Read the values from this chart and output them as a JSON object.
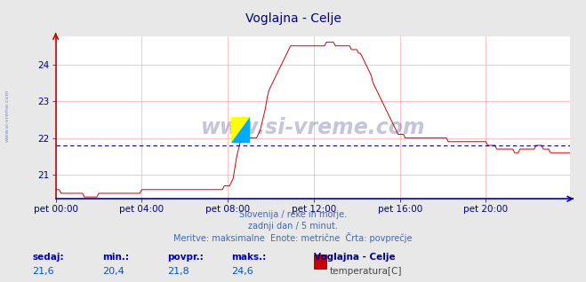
{
  "title": "Voglajna - Celje",
  "title_color": "#000080",
  "bg_color": "#e8e8e8",
  "plot_bg_color": "#ffffff",
  "grid_color": "#ffaaaa",
  "line_color": "#cc0000",
  "avg_line_color": "#000080",
  "avg_line_value": 21.8,
  "ylim_min": 20.35,
  "ylim_max": 24.75,
  "yticks": [
    21,
    22,
    23,
    24
  ],
  "xtick_labels": [
    "pet 00:00",
    "pet 04:00",
    "pet 08:00",
    "pet 12:00",
    "pet 16:00",
    "pet 20:00"
  ],
  "footer_line1": "Slovenija / reke in morje.",
  "footer_line2": "zadnji dan / 5 minut.",
  "footer_line3": "Meritve: maksimalne  Enote: metrične  Črta: povprečje",
  "footer_color": "#4466aa",
  "stat_labels": [
    "sedaj:",
    "min.:",
    "povpr.:",
    "maks.:"
  ],
  "stat_values": [
    "21,6",
    "20,4",
    "21,8",
    "24,6"
  ],
  "stat_label_color": "#0000bb",
  "stat_value_color": "#0055cc",
  "legend_station": "Voglajna - Celje",
  "legend_param": "temperatura[C]",
  "legend_color": "#cc0000",
  "watermark_text": "www.si-vreme.com",
  "watermark_color": "#1a1a6e",
  "left_label": "www.si-vreme.com",
  "temp_data": [
    20.6,
    20.6,
    20.6,
    20.5,
    20.5,
    20.5,
    20.5,
    20.5,
    20.5,
    20.5,
    20.5,
    20.5,
    20.5,
    20.5,
    20.5,
    20.5,
    20.4,
    20.4,
    20.4,
    20.4,
    20.4,
    20.4,
    20.4,
    20.4,
    20.5,
    20.5,
    20.5,
    20.5,
    20.5,
    20.5,
    20.5,
    20.5,
    20.5,
    20.5,
    20.5,
    20.5,
    20.5,
    20.5,
    20.5,
    20.5,
    20.5,
    20.5,
    20.5,
    20.5,
    20.5,
    20.5,
    20.5,
    20.5,
    20.6,
    20.6,
    20.6,
    20.6,
    20.6,
    20.6,
    20.6,
    20.6,
    20.6,
    20.6,
    20.6,
    20.6,
    20.6,
    20.6,
    20.6,
    20.6,
    20.6,
    20.6,
    20.6,
    20.6,
    20.6,
    20.6,
    20.6,
    20.6,
    20.6,
    20.6,
    20.6,
    20.6,
    20.6,
    20.6,
    20.6,
    20.6,
    20.6,
    20.6,
    20.6,
    20.6,
    20.6,
    20.6,
    20.6,
    20.6,
    20.6,
    20.6,
    20.6,
    20.6,
    20.6,
    20.6,
    20.7,
    20.7,
    20.7,
    20.7,
    20.8,
    20.9,
    21.2,
    21.5,
    21.7,
    21.9,
    21.9,
    21.9,
    21.9,
    22.0,
    22.0,
    22.0,
    22.0,
    22.0,
    22.0,
    22.1,
    22.2,
    22.4,
    22.6,
    22.8,
    23.1,
    23.3,
    23.4,
    23.5,
    23.6,
    23.7,
    23.8,
    23.9,
    24.0,
    24.1,
    24.2,
    24.3,
    24.4,
    24.5,
    24.5,
    24.5,
    24.5,
    24.5,
    24.5,
    24.5,
    24.5,
    24.5,
    24.5,
    24.5,
    24.5,
    24.5,
    24.5,
    24.5,
    24.5,
    24.5,
    24.5,
    24.5,
    24.5,
    24.6,
    24.6,
    24.6,
    24.6,
    24.6,
    24.5,
    24.5,
    24.5,
    24.5,
    24.5,
    24.5,
    24.5,
    24.5,
    24.5,
    24.4,
    24.4,
    24.4,
    24.4,
    24.3,
    24.3,
    24.2,
    24.1,
    24.0,
    23.9,
    23.8,
    23.7,
    23.5,
    23.4,
    23.3,
    23.2,
    23.1,
    23.0,
    22.9,
    22.8,
    22.7,
    22.6,
    22.5,
    22.4,
    22.3,
    22.2,
    22.1,
    22.1,
    22.1,
    22.1,
    22.0,
    22.0,
    22.0,
    22.0,
    22.0,
    22.0,
    22.0,
    22.0,
    22.0,
    22.0,
    22.0,
    22.0,
    22.0,
    22.0,
    22.0,
    22.0,
    22.0,
    22.0,
    22.0,
    22.0,
    22.0,
    22.0,
    22.0,
    22.0,
    21.9,
    21.9,
    21.9,
    21.9,
    21.9,
    21.9,
    21.9,
    21.9,
    21.9,
    21.9,
    21.9,
    21.9,
    21.9,
    21.9,
    21.9,
    21.9,
    21.9,
    21.9,
    21.9,
    21.9,
    21.9,
    21.9,
    21.8,
    21.8,
    21.8,
    21.8,
    21.8,
    21.7,
    21.7,
    21.7,
    21.7,
    21.7,
    21.7,
    21.7,
    21.7,
    21.7,
    21.7,
    21.6,
    21.6,
    21.6,
    21.7,
    21.7,
    21.7,
    21.7,
    21.7,
    21.7,
    21.7,
    21.7,
    21.7,
    21.8,
    21.8,
    21.8,
    21.8,
    21.7,
    21.7,
    21.7,
    21.7,
    21.6,
    21.6,
    21.6,
    21.6,
    21.6,
    21.6,
    21.6,
    21.6,
    21.6,
    21.6,
    21.6,
    21.6
  ]
}
